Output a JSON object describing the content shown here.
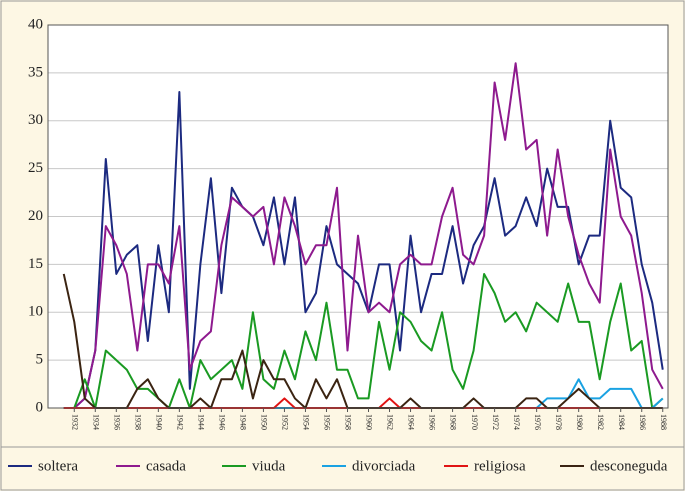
{
  "chart_data": {
    "type": "line",
    "x": [
      1931,
      1932,
      1933,
      1934,
      1935,
      1936,
      1937,
      1938,
      1939,
      1940,
      1941,
      1942,
      1943,
      1944,
      1945,
      1946,
      1947,
      1948,
      1949,
      1950,
      1951,
      1952,
      1953,
      1954,
      1955,
      1956,
      1957,
      1958,
      1959,
      1960,
      1961,
      1962,
      1963,
      1964,
      1965,
      1966,
      1967,
      1968,
      1969,
      1970,
      1971,
      1972,
      1973,
      1974,
      1975,
      1976,
      1977,
      1978,
      1979,
      1980,
      1981,
      1982,
      1983,
      1984,
      1985,
      1986,
      1987,
      1988
    ],
    "xlim": [
      1929.5,
      1988.5
    ],
    "xticks": [
      1932,
      1934,
      1936,
      1938,
      1940,
      1942,
      1944,
      1946,
      1948,
      1950,
      1952,
      1954,
      1956,
      1958,
      1960,
      1962,
      1964,
      1966,
      1968,
      1970,
      1972,
      1974,
      1976,
      1978,
      1980,
      1982,
      1984,
      1986,
      1988
    ],
    "ylim": [
      0,
      40
    ],
    "yticks": [
      0,
      5,
      10,
      15,
      20,
      25,
      30,
      35,
      40
    ],
    "grid": true,
    "series": [
      {
        "name": "soltera",
        "color": "#1c2a80",
        "values": [
          0,
          0,
          1,
          6,
          26,
          14,
          16,
          17,
          7,
          17,
          10,
          33,
          2,
          15,
          24,
          12,
          23,
          21,
          20,
          17,
          22,
          15,
          22,
          10,
          12,
          19,
          15,
          14,
          13,
          10,
          15,
          15,
          6,
          18,
          10,
          14,
          14,
          19,
          13,
          17,
          19,
          24,
          18,
          19,
          22,
          19,
          25,
          21,
          21,
          15,
          18,
          18,
          30,
          23,
          22,
          15,
          11,
          4
        ]
      },
      {
        "name": "casada",
        "color": "#8e1a8e",
        "values": [
          0,
          0,
          1,
          6,
          19,
          17,
          14,
          6,
          15,
          15,
          13,
          19,
          4,
          7,
          8,
          17,
          22,
          21,
          20,
          21,
          15,
          22,
          19,
          15,
          17,
          17,
          23,
          6,
          18,
          10,
          11,
          10,
          15,
          16,
          15,
          15,
          20,
          23,
          16,
          15,
          18,
          34,
          28,
          36,
          27,
          28,
          18,
          27,
          20,
          16,
          13,
          11,
          27,
          20,
          18,
          12,
          4,
          2
        ]
      },
      {
        "name": "viuda",
        "color": "#1a9a22",
        "values": [
          0,
          0,
          3,
          0,
          6,
          5,
          4,
          2,
          2,
          1,
          0,
          3,
          0,
          5,
          3,
          4,
          5,
          2,
          10,
          3,
          2,
          6,
          3,
          8,
          5,
          11,
          4,
          4,
          1,
          1,
          9,
          4,
          10,
          9,
          7,
          6,
          10,
          4,
          2,
          6,
          14,
          12,
          9,
          10,
          8,
          11,
          10,
          9,
          13,
          9,
          9,
          3,
          9,
          13,
          6,
          7,
          0,
          1
        ]
      },
      {
        "name": "divorciada",
        "color": "#1aa2e2",
        "values": [
          0,
          0,
          0,
          0,
          0,
          0,
          0,
          0,
          0,
          0,
          0,
          0,
          0,
          0,
          0,
          0,
          0,
          0,
          0,
          0,
          0,
          0,
          0,
          0,
          0,
          0,
          0,
          0,
          0,
          0,
          0,
          0,
          0,
          0,
          0,
          0,
          0,
          0,
          0,
          0,
          0,
          0,
          0,
          0,
          0,
          0,
          1,
          1,
          1,
          3,
          1,
          1,
          2,
          2,
          2,
          0,
          0,
          1
        ]
      },
      {
        "name": "religiosa",
        "color": "#e01414",
        "values": [
          0,
          0,
          0,
          0,
          0,
          0,
          0,
          0,
          0,
          0,
          0,
          0,
          0,
          0,
          0,
          0,
          0,
          0,
          0,
          0,
          0,
          1,
          0,
          0,
          0,
          0,
          0,
          0,
          0,
          0,
          0,
          1,
          0,
          0,
          0,
          0,
          0,
          0,
          0,
          0,
          0,
          0,
          0,
          0,
          0,
          0,
          0,
          0,
          0,
          0,
          0,
          0,
          0,
          0,
          0,
          0,
          0,
          0
        ]
      },
      {
        "name": "desconeguda",
        "color": "#3b2412",
        "values": [
          14,
          9,
          1,
          0,
          0,
          0,
          0,
          2,
          3,
          1,
          0,
          0,
          0,
          1,
          0,
          3,
          3,
          6,
          1,
          5,
          3,
          3,
          1,
          0,
          3,
          1,
          3,
          0,
          0,
          0,
          0,
          0,
          0,
          1,
          0,
          0,
          0,
          0,
          0,
          1,
          0,
          0,
          0,
          0,
          1,
          1,
          0,
          0,
          1,
          2,
          1,
          0,
          0,
          0,
          0,
          0,
          0,
          0
        ]
      }
    ]
  }
}
